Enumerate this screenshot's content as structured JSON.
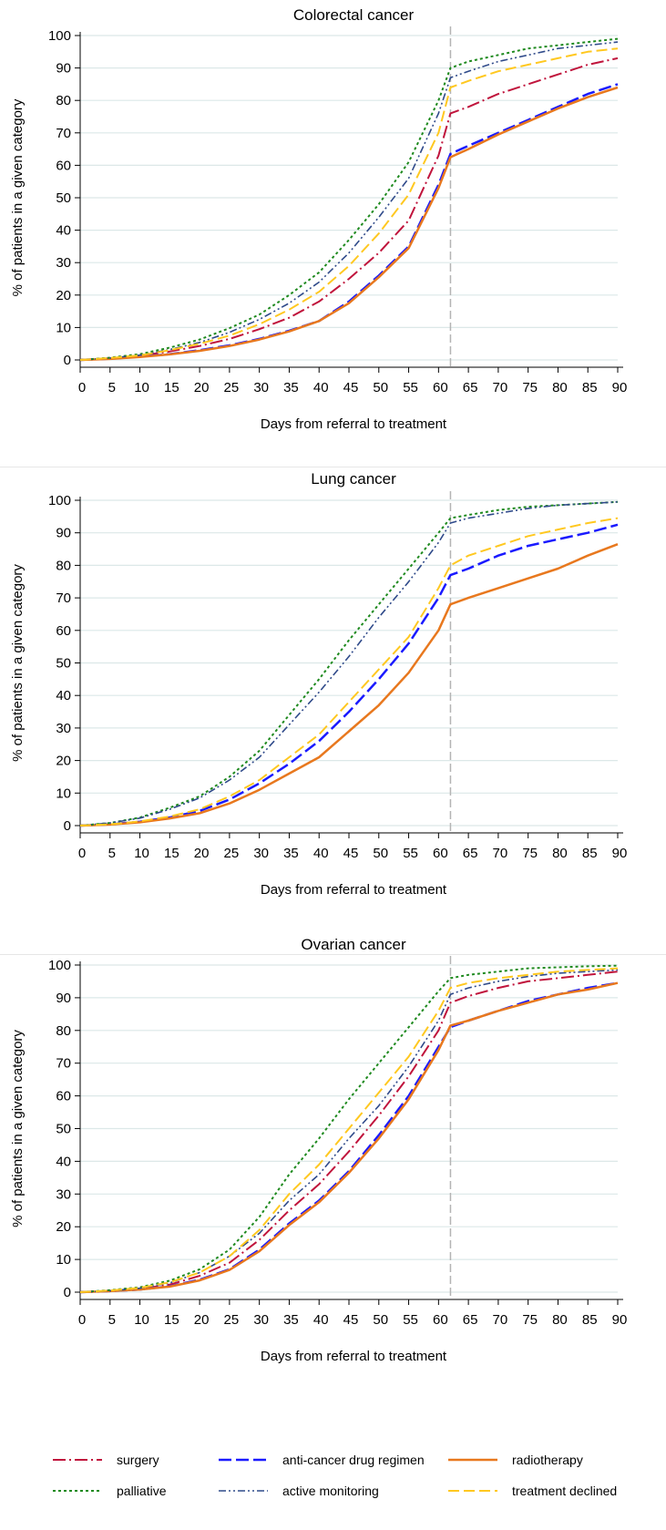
{
  "colors": {
    "surgery": "#c0143c",
    "anti_cancer": "#1a1aff",
    "radiotherapy": "#e8781e",
    "palliative": "#1f8a1f",
    "active_monitoring": "#2f4a8a",
    "treatment_declined": "#ffc820",
    "grid": "#dce8e8",
    "vline": "#b4b4b4"
  },
  "legend": [
    {
      "key": "surgery",
      "label": "surgery",
      "dash": "14,4,2,4",
      "width": 2
    },
    {
      "key": "anti_cancer",
      "label": "anti-cancer drug regimen",
      "dash": "14,5",
      "width": 2.5
    },
    {
      "key": "radiotherapy",
      "label": "radiotherapy",
      "dash": "",
      "width": 2.5
    },
    {
      "key": "palliative",
      "label": "palliative",
      "dash": "3,3",
      "width": 2
    },
    {
      "key": "active_monitoring",
      "label": "active monitoring",
      "dash": "8,3,2,3,2,3",
      "width": 1.6
    },
    {
      "key": "treatment_declined",
      "label": "treatment declined",
      "dash": "12,5",
      "width": 2
    }
  ],
  "chart_data": [
    {
      "type": "line",
      "title": "Colorectal cancer",
      "xlabel": "Days from referral to treatment",
      "ylabel": "% of patients in a given category",
      "xlim": [
        0,
        90
      ],
      "ylim": [
        0,
        100
      ],
      "xticks": [
        0,
        5,
        10,
        15,
        20,
        25,
        30,
        35,
        40,
        45,
        50,
        55,
        60,
        65,
        70,
        75,
        80,
        85,
        90
      ],
      "yticks": [
        0,
        10,
        20,
        30,
        40,
        50,
        60,
        70,
        80,
        90,
        100
      ],
      "vline": 62,
      "x": [
        0,
        5,
        10,
        15,
        20,
        25,
        30,
        35,
        40,
        45,
        50,
        55,
        60,
        62,
        65,
        70,
        75,
        80,
        85,
        90
      ],
      "series": [
        {
          "key": "surgery",
          "name": "surgery",
          "values": [
            0,
            0.5,
            1.3,
            2.6,
            4.3,
            6.5,
            9.5,
            13,
            18,
            25,
            33,
            43,
            63,
            76,
            78,
            82,
            85,
            88,
            91,
            93
          ]
        },
        {
          "key": "anti_cancer",
          "name": "anti-cancer drug regimen",
          "values": [
            0,
            0.4,
            1,
            1.8,
            3,
            4.5,
            6.5,
            9,
            12,
            18,
            26,
            35,
            54,
            63.5,
            66,
            70,
            74,
            78,
            82,
            85
          ]
        },
        {
          "key": "radiotherapy",
          "name": "radiotherapy",
          "values": [
            0,
            0.3,
            0.9,
            1.7,
            2.8,
            4.3,
            6.3,
            8.8,
            12,
            17.5,
            25.5,
            34.5,
            53,
            62.5,
            65,
            69.5,
            73.5,
            77.5,
            81,
            84
          ]
        },
        {
          "key": "palliative",
          "name": "palliative",
          "values": [
            0,
            0.7,
            1.8,
            3.8,
            6.3,
            9.8,
            14,
            20,
            27,
            37,
            48,
            61,
            80,
            90,
            92,
            94,
            96,
            97,
            98,
            99
          ]
        },
        {
          "key": "active_monitoring",
          "name": "active monitoring",
          "values": [
            0,
            0.6,
            1.5,
            3.2,
            5.4,
            8.5,
            12.5,
            17.5,
            24,
            33,
            44,
            56,
            76,
            87,
            89,
            92,
            94,
            96,
            97,
            98
          ]
        },
        {
          "key": "treatment_declined",
          "name": "treatment declined",
          "values": [
            0,
            0.6,
            1.4,
            3,
            5,
            7.5,
            11,
            15.5,
            21,
            29,
            39,
            51,
            70,
            84,
            86,
            89,
            91,
            93,
            95,
            96
          ]
        }
      ]
    },
    {
      "type": "line",
      "title": "Lung cancer",
      "xlabel": "Days from referral to treatment",
      "ylabel": "% of patients in a given category",
      "xlim": [
        0,
        90
      ],
      "ylim": [
        0,
        100
      ],
      "xticks": [
        0,
        5,
        10,
        15,
        20,
        25,
        30,
        35,
        40,
        45,
        50,
        55,
        60,
        62,
        65,
        70,
        75,
        80,
        85,
        90
      ],
      "yticks": [
        0,
        10,
        20,
        30,
        40,
        50,
        60,
        70,
        80,
        90,
        100
      ],
      "vline": 62,
      "x": [
        0,
        5,
        10,
        15,
        20,
        25,
        30,
        35,
        40,
        45,
        50,
        55,
        60,
        62,
        65,
        70,
        75,
        80,
        85,
        90
      ],
      "series": [
        {
          "key": "anti_cancer",
          "name": "anti-cancer drug regimen",
          "values": [
            0,
            0.4,
            1.2,
            2.5,
            4.5,
            8,
            13,
            19,
            26,
            35,
            45,
            56,
            70,
            77,
            79,
            83,
            86,
            88,
            90,
            92.5
          ]
        },
        {
          "key": "radiotherapy",
          "name": "radiotherapy",
          "values": [
            0,
            0.3,
            1,
            2.2,
            3.8,
            6.8,
            11,
            16,
            21,
            29,
            37,
            47,
            60,
            68,
            70,
            73,
            76,
            79,
            83,
            86.5
          ]
        },
        {
          "key": "palliative",
          "name": "palliative",
          "values": [
            0,
            0.8,
            2.5,
            5.5,
            9,
            15,
            23,
            34,
            45,
            57,
            68,
            79,
            90,
            94.5,
            95.5,
            97,
            98,
            98.5,
            99,
            99.5
          ]
        },
        {
          "key": "active_monitoring",
          "name": "active monitoring",
          "values": [
            0,
            0.8,
            2.3,
            5,
            8.5,
            14,
            21,
            31,
            41,
            52,
            64,
            75,
            87,
            93,
            94.5,
            96,
            97.5,
            98.5,
            99,
            99.5
          ]
        },
        {
          "key": "treatment_declined",
          "name": "treatment declined",
          "values": [
            0,
            0.4,
            1.3,
            2.8,
            5,
            9,
            14,
            21,
            28,
            38,
            48,
            58,
            73,
            80,
            83,
            86,
            89,
            91,
            93,
            94.5
          ]
        }
      ]
    },
    {
      "type": "line",
      "title": "Ovarian cancer",
      "xlabel": "Days from referral to treatment",
      "ylabel": "% of patients in a given category",
      "xlim": [
        0,
        90
      ],
      "ylim": [
        0,
        100
      ],
      "xticks": [
        0,
        5,
        10,
        15,
        20,
        25,
        30,
        35,
        40,
        45,
        50,
        55,
        60,
        62,
        65,
        70,
        75,
        80,
        85,
        90
      ],
      "yticks": [
        0,
        10,
        20,
        30,
        40,
        50,
        60,
        70,
        80,
        90,
        100
      ],
      "vline": 62,
      "x": [
        0,
        5,
        10,
        15,
        20,
        25,
        30,
        35,
        40,
        45,
        50,
        55,
        60,
        62,
        65,
        70,
        75,
        80,
        85,
        90
      ],
      "series": [
        {
          "key": "surgery",
          "name": "surgery",
          "values": [
            0,
            0.4,
            1,
            2.3,
            5,
            9,
            16,
            25,
            33,
            43,
            54,
            66,
            80,
            88.5,
            90.5,
            93,
            95,
            96,
            97,
            98
          ]
        },
        {
          "key": "anti_cancer",
          "name": "anti-cancer drug regimen",
          "values": [
            0,
            0.3,
            0.8,
            1.8,
            3.8,
            7,
            13,
            21,
            28,
            37,
            48,
            60,
            75,
            81,
            83,
            86,
            89,
            91,
            93,
            94.5
          ]
        },
        {
          "key": "radiotherapy",
          "name": "radiotherapy",
          "values": [
            0,
            0.3,
            0.8,
            1.7,
            3.6,
            6.8,
            12.5,
            20.5,
            27.5,
            36.5,
            47,
            59,
            74,
            81.5,
            83,
            86,
            88.5,
            91,
            92.5,
            94.5
          ]
        },
        {
          "key": "palliative",
          "name": "palliative",
          "values": [
            0,
            0.6,
            1.5,
            3.5,
            7,
            13,
            23,
            36,
            47,
            59,
            70,
            81,
            92,
            96,
            97,
            98,
            99,
            99.3,
            99.6,
            99.8
          ]
        },
        {
          "key": "active_monitoring",
          "name": "active monitoring",
          "values": [
            0,
            0.4,
            1.2,
            2.8,
            6,
            11,
            18,
            28,
            36,
            47,
            57,
            69,
            83,
            91,
            93,
            95,
            96.5,
            97.5,
            98,
            98.5
          ]
        },
        {
          "key": "treatment_declined",
          "name": "treatment declined",
          "values": [
            0,
            0.5,
            1.3,
            3,
            6,
            11,
            19,
            30,
            39,
            50,
            61,
            72,
            86,
            93,
            94.5,
            96,
            97,
            98,
            98.5,
            99
          ]
        }
      ]
    }
  ]
}
